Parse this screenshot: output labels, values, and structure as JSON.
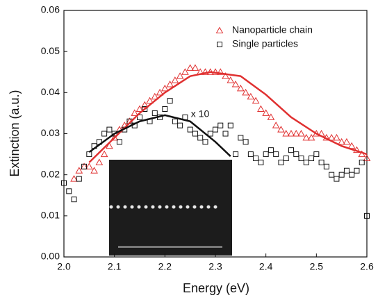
{
  "chart_data": {
    "type": "scatter",
    "x_label": "Energy (eV)",
    "y_label": "Extinction (a.u.)",
    "xlim": [
      2.0,
      2.6
    ],
    "ylim": [
      0,
      0.06
    ],
    "xticks": [
      {
        "value": 2,
        "label": "2.0"
      },
      2.1,
      2.2,
      2.3,
      2.4,
      2.5,
      2.6
    ],
    "yticks": [
      {
        "value": 0,
        "label": "0.00"
      },
      0.01,
      0.02,
      0.03,
      0.04,
      0.05,
      0.06
    ],
    "legend": "upper right",
    "annotation": "x 10",
    "series": [
      {
        "name": "Nanoparticle chain",
        "color": "#e03030",
        "marker": "triangle",
        "x": [
          2.02,
          2.03,
          2.04,
          2.05,
          2.06,
          2.07,
          2.08,
          2.09,
          2.1,
          2.11,
          2.12,
          2.13,
          2.14,
          2.15,
          2.16,
          2.17,
          2.18,
          2.19,
          2.2,
          2.21,
          2.22,
          2.23,
          2.24,
          2.25,
          2.26,
          2.27,
          2.28,
          2.29,
          2.3,
          2.31,
          2.32,
          2.33,
          2.34,
          2.35,
          2.36,
          2.37,
          2.38,
          2.39,
          2.4,
          2.41,
          2.42,
          2.43,
          2.44,
          2.45,
          2.46,
          2.47,
          2.48,
          2.49,
          2.5,
          2.51,
          2.52,
          2.53,
          2.54,
          2.55,
          2.56,
          2.57,
          2.58,
          2.59,
          2.6
        ],
        "values": [
          0.019,
          0.021,
          0.022,
          0.022,
          0.021,
          0.023,
          0.025,
          0.027,
          0.029,
          0.031,
          0.032,
          0.033,
          0.035,
          0.036,
          0.037,
          0.038,
          0.039,
          0.04,
          0.041,
          0.042,
          0.043,
          0.044,
          0.045,
          0.046,
          0.046,
          0.045,
          0.045,
          0.045,
          0.045,
          0.045,
          0.044,
          0.043,
          0.042,
          0.041,
          0.04,
          0.039,
          0.038,
          0.036,
          0.035,
          0.034,
          0.032,
          0.031,
          0.03,
          0.03,
          0.03,
          0.03,
          0.029,
          0.029,
          0.03,
          0.03,
          0.029,
          0.029,
          0.029,
          0.028,
          0.028,
          0.027,
          0.026,
          0.025,
          0.024
        ]
      },
      {
        "name": "Single particles",
        "color": "#111111",
        "marker": "square",
        "x": [
          2.0,
          2.01,
          2.02,
          2.03,
          2.04,
          2.05,
          2.06,
          2.07,
          2.08,
          2.09,
          2.1,
          2.11,
          2.12,
          2.13,
          2.14,
          2.15,
          2.16,
          2.17,
          2.18,
          2.19,
          2.2,
          2.21,
          2.22,
          2.23,
          2.24,
          2.25,
          2.26,
          2.27,
          2.28,
          2.29,
          2.3,
          2.31,
          2.32,
          2.33,
          2.34,
          2.35,
          2.36,
          2.37,
          2.38,
          2.39,
          2.4,
          2.41,
          2.42,
          2.43,
          2.44,
          2.45,
          2.46,
          2.47,
          2.48,
          2.49,
          2.5,
          2.51,
          2.52,
          2.53,
          2.54,
          2.55,
          2.56,
          2.57,
          2.58,
          2.59,
          2.6
        ],
        "values": [
          0.018,
          0.016,
          0.014,
          0.019,
          0.022,
          0.025,
          0.027,
          0.028,
          0.03,
          0.031,
          0.03,
          0.028,
          0.031,
          0.033,
          0.032,
          0.034,
          0.036,
          0.033,
          0.035,
          0.034,
          0.036,
          0.038,
          0.033,
          0.032,
          0.034,
          0.031,
          0.03,
          0.029,
          0.028,
          0.03,
          0.031,
          0.032,
          0.03,
          0.032,
          0.025,
          0.029,
          0.028,
          0.025,
          0.024,
          0.023,
          0.025,
          0.026,
          0.025,
          0.023,
          0.024,
          0.026,
          0.025,
          0.024,
          0.023,
          0.024,
          0.025,
          0.023,
          0.022,
          0.02,
          0.019,
          0.02,
          0.021,
          0.02,
          0.021,
          0.023,
          0.01
        ]
      },
      {
        "color": "#e03030",
        "marker": "line",
        "x": [
          2.05,
          2.1,
          2.15,
          2.2,
          2.25,
          2.29,
          2.35,
          2.4,
          2.45,
          2.5,
          2.55,
          2.6
        ],
        "values": [
          0.023,
          0.029,
          0.035,
          0.04,
          0.044,
          0.045,
          0.044,
          0.0395,
          0.034,
          0.03,
          0.027,
          0.025
        ]
      },
      {
        "color": "#111111",
        "marker": "line",
        "x": [
          2.05,
          2.1,
          2.15,
          2.2,
          2.25,
          2.3,
          2.33
        ],
        "values": [
          0.0255,
          0.03,
          0.033,
          0.0345,
          0.033,
          0.028,
          0.0245
        ]
      }
    ]
  }
}
